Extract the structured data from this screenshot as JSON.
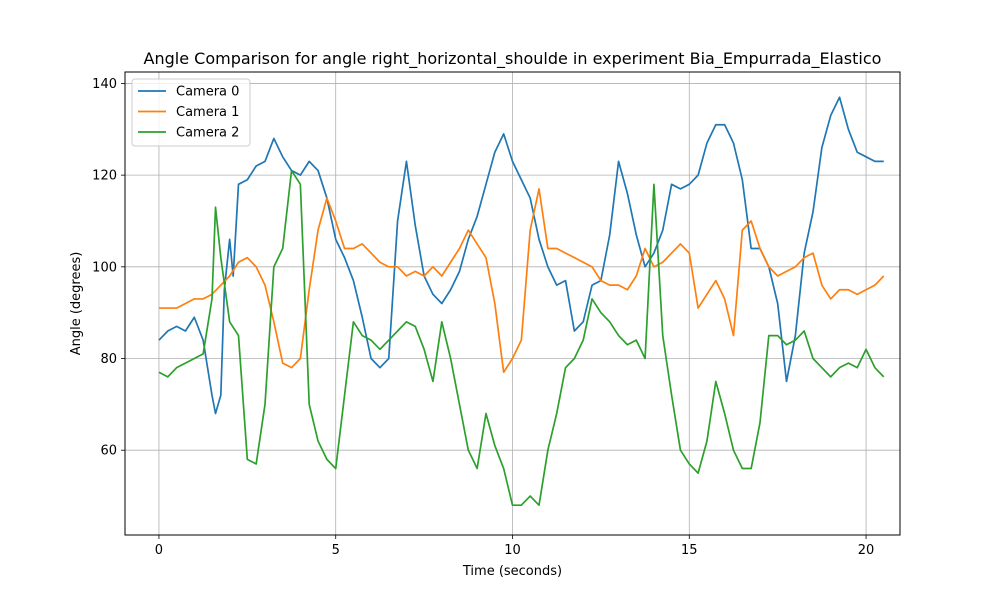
{
  "chart_data": {
    "type": "line",
    "title": "Angle Comparison for angle right_horizontal_shoulde in experiment Bia_Empurrada_Elastico",
    "xlabel": "Time (seconds)",
    "ylabel": "Angle (degrees)",
    "xlim": [
      -0.96,
      20.96
    ],
    "ylim": [
      41.5,
      142.5
    ],
    "xticks": [
      0,
      5,
      10,
      15,
      20
    ],
    "yticks": [
      60,
      80,
      100,
      120,
      140
    ],
    "grid": true,
    "legend": "top-left",
    "series": [
      {
        "name": "Camera 0",
        "color": "#1f77b4",
        "x": [
          0,
          0.25,
          0.5,
          0.75,
          1.0,
          1.25,
          1.5,
          1.6,
          1.75,
          1.85,
          2.0,
          2.1,
          2.25,
          2.5,
          2.75,
          3.0,
          3.25,
          3.5,
          3.75,
          4.0,
          4.25,
          4.5,
          4.75,
          5.0,
          5.25,
          5.5,
          5.75,
          6.0,
          6.25,
          6.5,
          6.75,
          7.0,
          7.25,
          7.5,
          7.75,
          8.0,
          8.25,
          8.5,
          8.75,
          9.0,
          9.25,
          9.5,
          9.75,
          10.0,
          10.25,
          10.5,
          10.75,
          11.0,
          11.25,
          11.5,
          11.75,
          12.0,
          12.25,
          12.5,
          12.75,
          13.0,
          13.25,
          13.5,
          13.75,
          14.0,
          14.25,
          14.5,
          14.75,
          15.0,
          15.25,
          15.5,
          15.75,
          16.0,
          16.25,
          16.5,
          16.75,
          17.0,
          17.25,
          17.5,
          17.75,
          18.0,
          18.25,
          18.5,
          18.75,
          19.0,
          19.25,
          19.5,
          19.75,
          20.0,
          20.25,
          20.5
        ],
        "y": [
          84,
          86,
          87,
          86,
          89,
          84,
          72,
          68,
          72,
          95,
          106,
          98,
          118,
          119,
          122,
          123,
          128,
          124,
          121,
          120,
          123,
          121,
          115,
          106,
          102,
          97,
          89,
          80,
          78,
          80,
          110,
          123,
          109,
          98,
          94,
          92,
          95,
          99,
          106,
          111,
          118,
          125,
          129,
          123,
          119,
          115,
          106,
          100,
          96,
          97,
          86,
          88,
          96,
          97,
          107,
          123,
          116,
          107,
          100,
          103,
          108,
          118,
          117,
          118,
          120,
          127,
          131,
          131,
          127,
          119,
          104,
          104,
          100,
          92,
          75,
          85,
          103,
          112,
          126,
          133,
          137,
          130,
          125,
          124,
          123,
          123
        ]
      },
      {
        "name": "Camera 1",
        "color": "#ff7f0e",
        "x": [
          0,
          0.25,
          0.5,
          0.75,
          1.0,
          1.25,
          1.5,
          1.75,
          2.0,
          2.25,
          2.5,
          2.75,
          3.0,
          3.25,
          3.5,
          3.75,
          4.0,
          4.25,
          4.5,
          4.75,
          5.0,
          5.25,
          5.5,
          5.75,
          6.0,
          6.25,
          6.5,
          6.75,
          7.0,
          7.25,
          7.5,
          7.75,
          8.0,
          8.25,
          8.5,
          8.75,
          9.0,
          9.25,
          9.5,
          9.75,
          10.0,
          10.25,
          10.5,
          10.75,
          11.0,
          11.25,
          11.5,
          11.75,
          12.0,
          12.25,
          12.5,
          12.75,
          13.0,
          13.25,
          13.5,
          13.75,
          14.0,
          14.25,
          14.5,
          14.75,
          15.0,
          15.25,
          15.5,
          15.75,
          16.0,
          16.25,
          16.5,
          16.75,
          17.0,
          17.25,
          17.5,
          17.75,
          18.0,
          18.25,
          18.5,
          18.75,
          19.0,
          19.25,
          19.5,
          19.75,
          20.0,
          20.25,
          20.5
        ],
        "y": [
          91,
          91,
          91,
          92,
          93,
          93,
          94,
          96,
          98,
          101,
          102,
          100,
          96,
          88,
          79,
          78,
          80,
          95,
          108,
          115,
          110,
          104,
          104,
          105,
          103,
          101,
          100,
          100,
          98,
          99,
          98,
          100,
          98,
          101,
          104,
          108,
          105,
          102,
          92,
          77,
          80,
          84,
          108,
          117,
          104,
          104,
          103,
          102,
          101,
          100,
          97,
          96,
          96,
          95,
          98,
          104,
          100,
          101,
          103,
          105,
          103,
          91,
          94,
          97,
          93,
          85,
          108,
          110,
          104,
          100,
          98,
          99,
          100,
          102,
          103,
          96,
          93,
          95,
          95,
          94,
          95,
          96,
          98
        ]
      },
      {
        "name": "Camera 2",
        "color": "#2ca02c",
        "x": [
          0,
          0.25,
          0.5,
          0.75,
          1.0,
          1.25,
          1.5,
          1.6,
          1.75,
          2.0,
          2.25,
          2.5,
          2.75,
          3.0,
          3.25,
          3.5,
          3.75,
          4.0,
          4.25,
          4.5,
          4.75,
          5.0,
          5.25,
          5.5,
          5.75,
          6.0,
          6.25,
          6.5,
          6.75,
          7.0,
          7.25,
          7.5,
          7.75,
          8.0,
          8.25,
          8.5,
          8.75,
          9.0,
          9.25,
          9.5,
          9.75,
          10.0,
          10.25,
          10.5,
          10.75,
          11.0,
          11.25,
          11.5,
          11.75,
          12.0,
          12.25,
          12.5,
          12.75,
          13.0,
          13.25,
          13.5,
          13.75,
          14.0,
          14.25,
          14.5,
          14.75,
          15.0,
          15.25,
          15.5,
          15.75,
          16.0,
          16.25,
          16.5,
          16.75,
          17.0,
          17.25,
          17.5,
          17.75,
          18.0,
          18.25,
          18.5,
          18.75,
          19.0,
          19.25,
          19.5,
          19.75,
          20.0,
          20.25,
          20.5
        ],
        "y": [
          77,
          76,
          78,
          79,
          80,
          81,
          93,
          113,
          102,
          88,
          85,
          58,
          57,
          70,
          100,
          104,
          121,
          118,
          70,
          62,
          58,
          56,
          72,
          88,
          85,
          84,
          82,
          84,
          86,
          88,
          87,
          82,
          75,
          88,
          80,
          70,
          60,
          56,
          68,
          61,
          56,
          48,
          48,
          50,
          48,
          60,
          68,
          78,
          80,
          84,
          93,
          90,
          88,
          85,
          83,
          84,
          80,
          118,
          85,
          72,
          60,
          57,
          55,
          62,
          75,
          68,
          60,
          56,
          56,
          66,
          85,
          85,
          83,
          84,
          86,
          80,
          78,
          76,
          78,
          79,
          78,
          82,
          78,
          76
        ]
      }
    ]
  }
}
